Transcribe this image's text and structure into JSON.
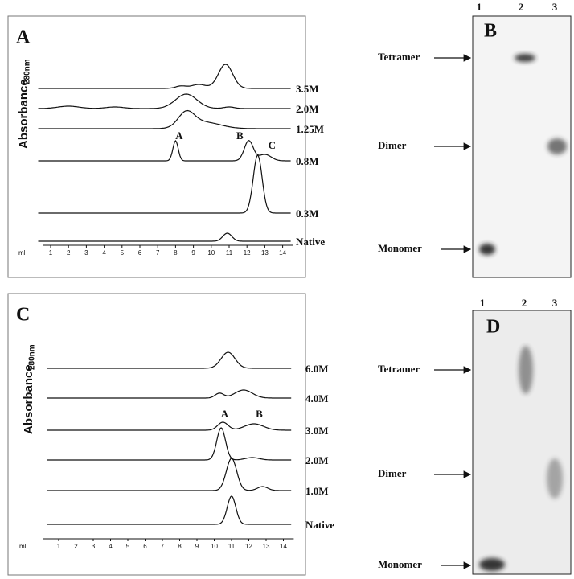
{
  "panels": [
    {
      "label": "A",
      "y_label": "Absorbance",
      "y_label_sub": "280nm",
      "x_unit": "ml",
      "x_ticks": [
        1,
        2,
        3,
        4,
        5,
        6,
        7,
        8,
        9,
        10,
        11,
        12,
        13,
        14
      ],
      "traces": [
        "3.5M",
        "2.0M",
        "1.25M",
        "0.8M",
        "0.3M",
        "Native"
      ],
      "peak_labels": [
        "A",
        "B",
        "C"
      ]
    },
    {
      "label": "B",
      "lanes": [
        "1",
        "2",
        "3"
      ],
      "bands": [
        "Tetramer",
        "Dimer",
        "Monomer"
      ]
    },
    {
      "label": "C",
      "y_label": "Absorbance",
      "y_label_sub": "280nm",
      "x_unit": "ml",
      "x_ticks": [
        1,
        2,
        3,
        4,
        5,
        6,
        7,
        8,
        9,
        10,
        11,
        12,
        13,
        14
      ],
      "traces": [
        "6.0M",
        "4.0M",
        "3.0M",
        "2.0M",
        "1.0M",
        "Native"
      ],
      "peak_labels": [
        "A",
        "B"
      ]
    },
    {
      "label": "D",
      "lanes": [
        "1",
        "2",
        "3"
      ],
      "bands": [
        "Tetramer",
        "Dimer",
        "Monomer"
      ]
    }
  ]
}
